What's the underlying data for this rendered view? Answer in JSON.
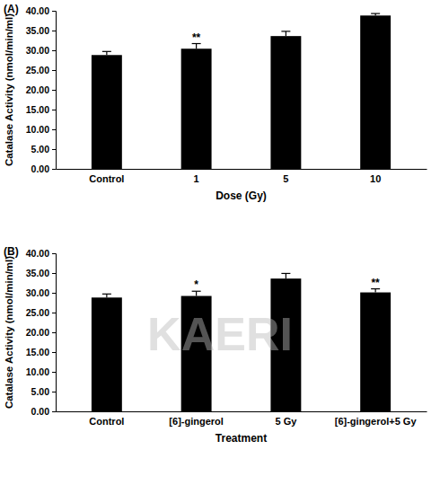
{
  "chart_data": [
    {
      "type": "bar",
      "title": "(A)",
      "x_label": "Dose (Gy)",
      "y_label": "Catalase Activity (nmol/min/ml)",
      "categories": [
        "Control",
        "1",
        "5",
        "10"
      ],
      "values": [
        28.8,
        30.4,
        33.6,
        38.8
      ],
      "errors": [
        0.9,
        1.3,
        1.2,
        0.5
      ],
      "color": "#000000",
      "ylim": [
        0,
        40
      ],
      "yticks": [
        {
          "value": 0,
          "label": "0.00"
        },
        {
          "value": 5,
          "label": "5.00"
        },
        {
          "value": 10,
          "label": "10.00"
        },
        {
          "value": 15,
          "label": "15.00"
        },
        {
          "value": 20,
          "label": "20.00"
        },
        {
          "value": 25,
          "label": "25.00"
        },
        {
          "value": 30,
          "label": "30.00"
        },
        {
          "value": 35,
          "label": "35.00"
        },
        {
          "value": 40,
          "label": "40.00"
        }
      ],
      "grid": false,
      "annotations": [
        {
          "category": "1",
          "text": "**"
        }
      ]
    },
    {
      "type": "bar",
      "title": "(B)",
      "x_label": "Treatment",
      "y_label": "Catalase Activity (nmol/min/ml)",
      "categories": [
        "Control",
        "[6]-gingerol",
        "5 Gy",
        "[6]-gingerol+5 Gy"
      ],
      "values": [
        28.8,
        29.2,
        33.6,
        30.1
      ],
      "errors": [
        0.9,
        1.2,
        1.3,
        0.9
      ],
      "color": "#000000",
      "ylim": [
        0,
        40
      ],
      "yticks": [
        {
          "value": 0,
          "label": "0.00"
        },
        {
          "value": 5,
          "label": "5.00"
        },
        {
          "value": 10,
          "label": "10.00"
        },
        {
          "value": 15,
          "label": "15.00"
        },
        {
          "value": 20,
          "label": "20.00"
        },
        {
          "value": 25,
          "label": "25.00"
        },
        {
          "value": 30,
          "label": "30.00"
        },
        {
          "value": 35,
          "label": "35.00"
        },
        {
          "value": 40,
          "label": "40.00"
        }
      ],
      "grid": false,
      "annotations": [
        {
          "category": "[6]-gingerol",
          "text": "*"
        },
        {
          "category": "[6]-gingerol+5 Gy",
          "text": "**"
        },
        {
          "text": "KAERI"
        }
      ]
    }
  ]
}
